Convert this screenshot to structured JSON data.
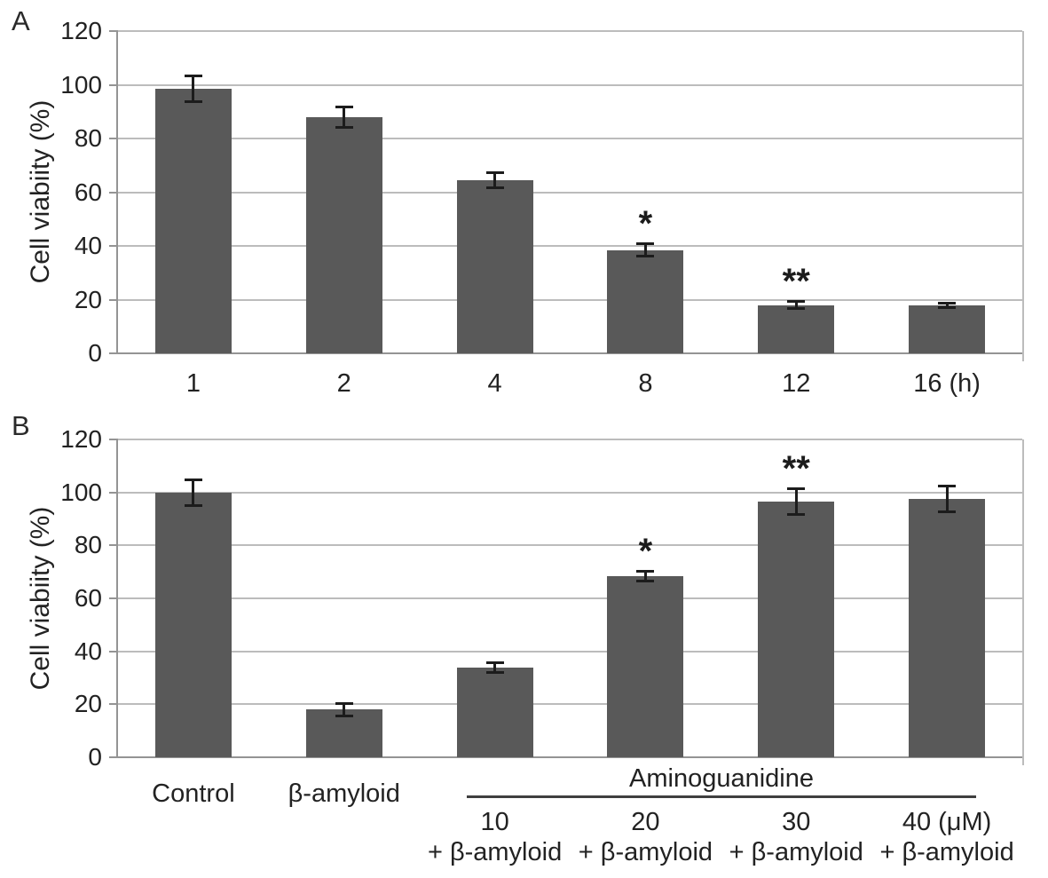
{
  "figure": {
    "type": "two-panel bar figure",
    "background": "#ffffff",
    "text_color": "#1f1f1f",
    "grid_color": "#bcbcbc",
    "axis_color": "#949494",
    "error_bar_color": "#1c1c1c"
  },
  "chart_data": [
    {
      "type": "bar",
      "panel_label": "A",
      "title": "",
      "xlabel": "",
      "ylabel": "Cell viabiity (%)",
      "ylim": [
        0,
        120
      ],
      "yticks": [
        0,
        20,
        40,
        60,
        80,
        100,
        120
      ],
      "grid": true,
      "legend": "none",
      "bar_color": "#595959",
      "categories": [
        "1",
        "2",
        "4",
        "8",
        "12",
        "16 (h)"
      ],
      "values": [
        98.5,
        88,
        64.5,
        38.5,
        18,
        18
      ],
      "errors": [
        5,
        4,
        3,
        2.5,
        1.5,
        1
      ],
      "annotations": [
        "",
        "",
        "",
        "*",
        "**",
        ""
      ]
    },
    {
      "type": "bar",
      "panel_label": "B",
      "title": "",
      "xlabel": "",
      "ylabel": "Cell viabiity (%)",
      "ylim": [
        0,
        120
      ],
      "yticks": [
        0,
        20,
        40,
        60,
        80,
        100,
        120
      ],
      "grid": true,
      "legend": "none",
      "bar_color": "#595959",
      "group_label": "Aminoguanidine",
      "categories": [
        {
          "label": "Control"
        },
        {
          "label": "β-amyloid"
        },
        {
          "label": "10",
          "sub": "+ β-amyloid",
          "group": true
        },
        {
          "label": "20",
          "sub": "+ β-amyloid",
          "group": true
        },
        {
          "label": "30",
          "sub": "+ β-amyloid",
          "group": true
        },
        {
          "label": "40 (μM)",
          "sub": "+ β-amyloid",
          "group": true
        }
      ],
      "values": [
        100,
        18,
        34,
        68.5,
        96.5,
        97.5
      ],
      "errors": [
        5,
        2.5,
        2,
        2,
        5,
        5
      ],
      "annotations": [
        "",
        "",
        "",
        "*",
        "**",
        ""
      ]
    }
  ]
}
